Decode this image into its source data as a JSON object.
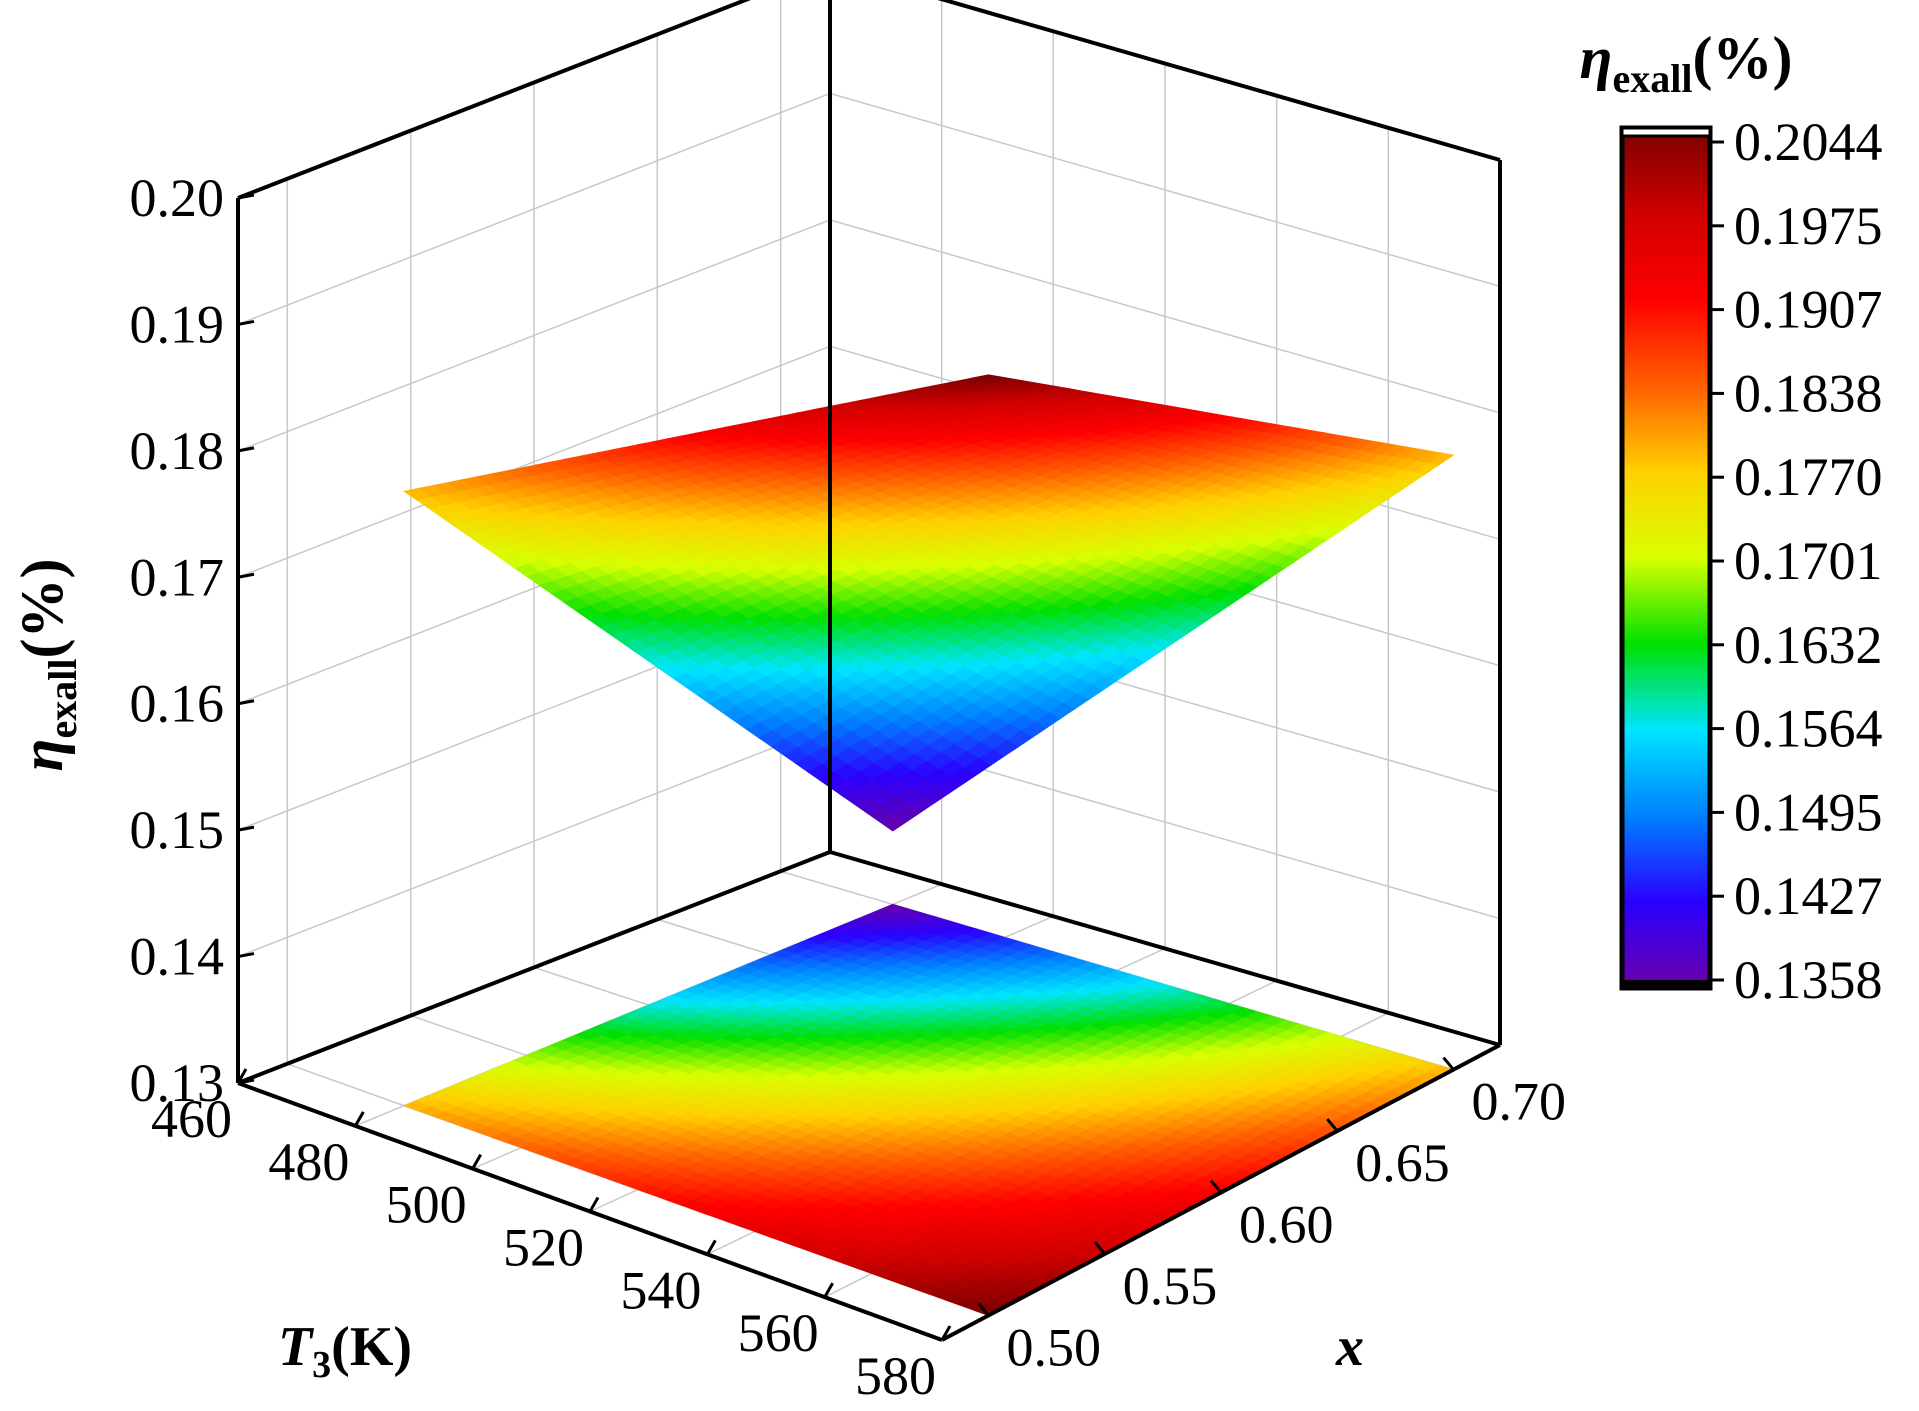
{
  "chart_data": {
    "type": "surface3d",
    "title": "",
    "x_axis": {
      "label_italic": "T",
      "label_sub": "3",
      "label_rest": "(K)",
      "range": [
        460,
        580
      ],
      "ticks": [
        "460",
        "480",
        "500",
        "520",
        "540",
        "560",
        "580"
      ]
    },
    "y_axis": {
      "label_italic": "x",
      "range": [
        0.48,
        0.72
      ],
      "ticks": [
        "0.50",
        "0.55",
        "0.60",
        "0.65",
        "0.70"
      ]
    },
    "z_axis": {
      "label_greek": "η",
      "label_sub": "exall",
      "label_rest": "(%)",
      "range": [
        0.13,
        0.2
      ],
      "ticks": [
        "0.13",
        "0.14",
        "0.15",
        "0.16",
        "0.17",
        "0.18",
        "0.19",
        "0.20"
      ]
    },
    "surface": {
      "T3": [
        480,
        580
      ],
      "x": [
        0.5,
        0.7
      ],
      "corner_values": {
        "T480_x050": 0.1786,
        "T580_x050": 0.2044,
        "T580_x070": 0.1786,
        "T480_x070": 0.1358
      },
      "contour_projection": "floor"
    },
    "colorbar": {
      "title_greek": "η",
      "title_sub": "exall",
      "title_rest": "(%)",
      "min": 0.1358,
      "max": 0.2044,
      "ticks": [
        "0.2044",
        "0.1975",
        "0.1907",
        "0.1838",
        "0.1770",
        "0.1701",
        "0.1632",
        "0.1564",
        "0.1495",
        "0.1427",
        "0.1358"
      ],
      "colors": [
        "#6a00a8",
        "#2a00ff",
        "#0080ff",
        "#00e5ff",
        "#00e000",
        "#d8ff00",
        "#ffd000",
        "#ff6000",
        "#ff0000",
        "#d00000",
        "#7a0000"
      ]
    },
    "grid": true
  }
}
